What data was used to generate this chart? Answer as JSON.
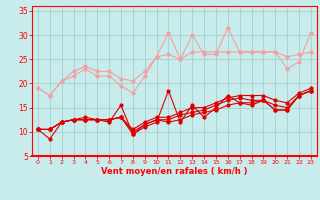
{
  "xlabel": "Vent moyen/en rafales ( km/h )",
  "background_color": "#c8ecec",
  "grid_color": "#aad4d4",
  "x_values": [
    0,
    1,
    2,
    3,
    4,
    5,
    6,
    7,
    8,
    9,
    10,
    11,
    12,
    13,
    14,
    15,
    16,
    17,
    18,
    19,
    20,
    21,
    22,
    23
  ],
  "ylim": [
    5,
    36
  ],
  "xlim": [
    -0.5,
    23.5
  ],
  "yticks": [
    5,
    10,
    15,
    20,
    25,
    30,
    35
  ],
  "series_light": [
    [
      19.0,
      17.5,
      20.5,
      21.5,
      23.0,
      21.5,
      21.5,
      19.5,
      18.0,
      21.5,
      25.5,
      30.5,
      25.0,
      30.0,
      26.0,
      26.0,
      31.5,
      26.5,
      26.5,
      26.5,
      26.5,
      23.0,
      24.5,
      30.5
    ],
    [
      19.0,
      17.5,
      20.5,
      22.5,
      23.5,
      22.5,
      22.5,
      21.0,
      20.5,
      22.5,
      25.5,
      26.0,
      25.0,
      26.5,
      26.5,
      26.5,
      26.5,
      26.5,
      26.5,
      26.5,
      26.5,
      25.5,
      26.0,
      26.5
    ]
  ],
  "series_dark": [
    [
      10.5,
      8.5,
      12.0,
      12.5,
      13.0,
      12.5,
      12.0,
      15.5,
      9.5,
      11.0,
      12.0,
      18.5,
      12.0,
      15.5,
      13.0,
      15.0,
      17.5,
      16.0,
      15.5,
      16.5,
      14.5,
      14.5,
      17.5,
      18.5
    ],
    [
      10.5,
      10.5,
      12.0,
      12.5,
      12.5,
      12.5,
      12.5,
      13.0,
      9.5,
      11.5,
      12.5,
      12.0,
      12.5,
      13.5,
      14.0,
      14.5,
      15.5,
      16.0,
      16.0,
      16.5,
      14.5,
      14.5,
      17.5,
      18.5
    ],
    [
      10.5,
      10.5,
      12.0,
      12.5,
      12.5,
      12.5,
      12.5,
      13.0,
      10.0,
      11.5,
      12.5,
      12.5,
      13.5,
      14.0,
      14.5,
      15.5,
      16.5,
      17.0,
      16.5,
      16.5,
      15.5,
      15.0,
      17.5,
      18.5
    ],
    [
      10.5,
      10.5,
      12.0,
      12.5,
      12.5,
      12.5,
      12.5,
      13.0,
      10.5,
      12.0,
      13.0,
      13.0,
      14.0,
      15.0,
      15.0,
      16.0,
      17.0,
      17.5,
      17.5,
      17.5,
      16.5,
      16.0,
      18.0,
      19.0
    ]
  ],
  "light_color": "#f4a0a0",
  "dark_color": "#dd0000",
  "marker_size": 2.0,
  "line_width": 0.8
}
